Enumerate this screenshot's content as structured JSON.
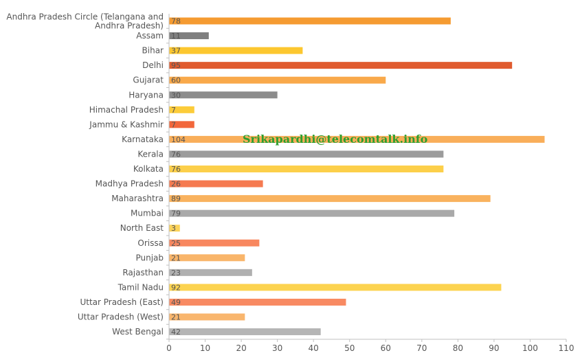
{
  "chart_data": {
    "type": "bar",
    "orientation": "horizontal",
    "title": "",
    "xlabel": "",
    "ylabel": "",
    "xlim": [
      0,
      110
    ],
    "xticks": [
      0,
      10,
      20,
      30,
      40,
      50,
      60,
      70,
      80,
      90,
      100,
      110
    ],
    "grid": false,
    "watermark": "Srikapardhi@telecomtalk.info",
    "categories": [
      "Andhra Pradesh Circle (Telangana and Andhra Pradesh)",
      "Assam",
      "Bihar",
      "Delhi",
      "Gujarat",
      "Haryana",
      "Himachal Pradesh",
      "Jammu & Kashmir",
      "Karnataka",
      "Kerala",
      "Kolkata",
      "Madhya Pradesh",
      "Maharashtra",
      "Mumbai",
      "North East",
      "Orissa",
      "Punjab",
      "Rajasthan",
      "Tamil Nadu",
      "Uttar Pradesh (East)",
      "Uttar Pradesh (West)",
      "West Bengal"
    ],
    "values": [
      78,
      11,
      37,
      95,
      60,
      30,
      7,
      7,
      104,
      76,
      76,
      26,
      89,
      79,
      3,
      25,
      21,
      23,
      92,
      49,
      21,
      42
    ],
    "colors": [
      "#f59b31",
      "#7f7f7f",
      "#fcc72f",
      "#e05b2f",
      "#f9a94a",
      "#8c8c8c",
      "#fccc3a",
      "#f2673b",
      "#f9ae5a",
      "#9c9c9c",
      "#fccf4a",
      "#f57a50",
      "#f9b25e",
      "#a9a9a9",
      "#fcd35a",
      "#f8875f",
      "#f9b56a",
      "#b0b0b0",
      "#fcd350",
      "#f88a62",
      "#f9b66e",
      "#b5b5b5"
    ]
  }
}
